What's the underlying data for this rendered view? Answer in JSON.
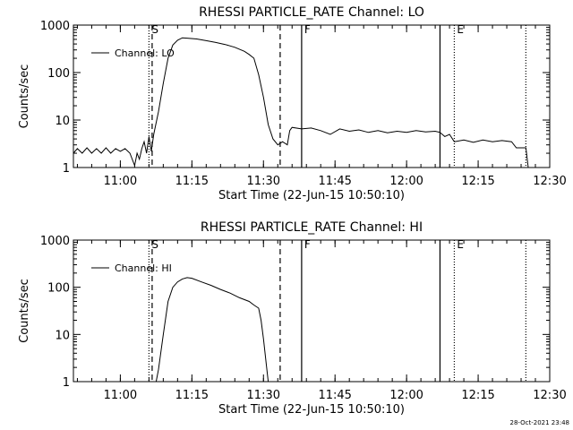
{
  "footer_timestamp": "28-Oct-2021 23:48",
  "colors": {
    "background": "#ffffff",
    "foreground": "#000000"
  },
  "chart_data": [
    {
      "type": "line",
      "title": "RHESSI PARTICLE_RATE Channel: LO",
      "xlabel": "Start Time (22-Jun-15 10:50:10)",
      "ylabel": "Counts/sec",
      "y_scale": "log",
      "ylim": [
        1,
        1000
      ],
      "xlim": [
        "10:50:10",
        "12:30:00"
      ],
      "x_ticks": [
        "11:00",
        "11:15",
        "11:30",
        "11:45",
        "12:00",
        "12:15",
        "12:30"
      ],
      "y_ticks": [
        "1",
        "10",
        "100",
        "1000"
      ],
      "legend": {
        "position": "top-left",
        "label": "Channel: LO"
      },
      "annotations": [
        {
          "label": "S",
          "time": "11:06",
          "style": "dotted"
        },
        {
          "label": "F",
          "time": "11:38",
          "style": "solid"
        },
        {
          "label": "E",
          "time": "12:10",
          "style": "dotted"
        }
      ],
      "reference_lines": [
        {
          "time": "11:06:40",
          "style": "dashed"
        },
        {
          "time": "11:33:30",
          "style": "dashed"
        },
        {
          "time": "12:07:00",
          "style": "solid"
        },
        {
          "time": "12:25:00",
          "style": "dotted"
        }
      ],
      "series": [
        {
          "label": "Channel: LO",
          "points": [
            [
              "10:50:10",
              2
            ],
            [
              "10:51:00",
              2.5
            ],
            [
              "10:52:00",
              2
            ],
            [
              "10:53:00",
              2.6
            ],
            [
              "10:54:00",
              2
            ],
            [
              "10:55:00",
              2.5
            ],
            [
              "10:56:00",
              2
            ],
            [
              "10:57:00",
              2.6
            ],
            [
              "10:58:00",
              2
            ],
            [
              "10:59:00",
              2.5
            ],
            [
              "11:00:00",
              2.2
            ],
            [
              "11:01:00",
              2.5
            ],
            [
              "11:02:00",
              2
            ],
            [
              "11:03:00",
              1.1
            ],
            [
              "11:03:30",
              2
            ],
            [
              "11:04:00",
              1.5
            ],
            [
              "11:04:30",
              2.5
            ],
            [
              "11:05:00",
              3.5
            ],
            [
              "11:05:30",
              2
            ],
            [
              "11:06:00",
              4.5
            ],
            [
              "11:06:30",
              2.2
            ],
            [
              "11:07:00",
              5
            ],
            [
              "11:08:00",
              15
            ],
            [
              "11:09:00",
              60
            ],
            [
              "11:10:00",
              200
            ],
            [
              "11:11:00",
              380
            ],
            [
              "11:12:00",
              480
            ],
            [
              "11:13:00",
              540
            ],
            [
              "11:14:00",
              530
            ],
            [
              "11:16:00",
              510
            ],
            [
              "11:18:00",
              470
            ],
            [
              "11:20:00",
              430
            ],
            [
              "11:22:00",
              390
            ],
            [
              "11:24:00",
              340
            ],
            [
              "11:26:00",
              280
            ],
            [
              "11:27:00",
              240
            ],
            [
              "11:28:00",
              200
            ],
            [
              "11:29:00",
              90
            ],
            [
              "11:30:00",
              30
            ],
            [
              "11:31:00",
              8
            ],
            [
              "11:32:00",
              4
            ],
            [
              "11:33:00",
              3
            ],
            [
              "11:34:00",
              3.5
            ],
            [
              "11:35:00",
              3
            ],
            [
              "11:35:30",
              6
            ],
            [
              "11:36:00",
              7
            ],
            [
              "11:38:00",
              6.5
            ],
            [
              "11:40:00",
              6.8
            ],
            [
              "11:42:00",
              6
            ],
            [
              "11:44:00",
              5
            ],
            [
              "11:46:00",
              6.5
            ],
            [
              "11:48:00",
              5.8
            ],
            [
              "11:50:00",
              6.2
            ],
            [
              "11:52:00",
              5.5
            ],
            [
              "11:54:00",
              6
            ],
            [
              "11:56:00",
              5.4
            ],
            [
              "11:58:00",
              5.8
            ],
            [
              "12:00:00",
              5.5
            ],
            [
              "12:02:00",
              6
            ],
            [
              "12:04:00",
              5.6
            ],
            [
              "12:06:00",
              5.8
            ],
            [
              "12:07:00",
              5.5
            ],
            [
              "12:08:00",
              4.5
            ],
            [
              "12:09:00",
              5
            ],
            [
              "12:10:00",
              3.5
            ],
            [
              "12:12:00",
              3.8
            ],
            [
              "12:14:00",
              3.4
            ],
            [
              "12:16:00",
              3.8
            ],
            [
              "12:18:00",
              3.5
            ],
            [
              "12:20:00",
              3.7
            ],
            [
              "12:22:00",
              3.5
            ],
            [
              "12:23:00",
              2.6
            ],
            [
              "12:25:00",
              2.6
            ],
            [
              "12:25:30",
              1
            ]
          ]
        }
      ]
    },
    {
      "type": "line",
      "title": "RHESSI PARTICLE_RATE Channel: HI",
      "xlabel": "Start Time (22-Jun-15 10:50:10)",
      "ylabel": "Counts/sec",
      "y_scale": "log",
      "ylim": [
        1,
        1000
      ],
      "xlim": [
        "10:50:10",
        "12:30:00"
      ],
      "x_ticks": [
        "11:00",
        "11:15",
        "11:30",
        "11:45",
        "12:00",
        "12:15",
        "12:30"
      ],
      "y_ticks": [
        "1",
        "10",
        "100",
        "1000"
      ],
      "legend": {
        "position": "top-left",
        "label": "Channel: HI"
      },
      "annotations": [
        {
          "label": "S",
          "time": "11:06",
          "style": "dotted"
        },
        {
          "label": "F",
          "time": "11:38",
          "style": "solid"
        },
        {
          "label": "E",
          "time": "12:10",
          "style": "dotted"
        }
      ],
      "reference_lines": [
        {
          "time": "11:06:40",
          "style": "dashed"
        },
        {
          "time": "11:33:30",
          "style": "dashed"
        },
        {
          "time": "12:07:00",
          "style": "solid"
        },
        {
          "time": "12:25:00",
          "style": "dotted"
        }
      ],
      "series": [
        {
          "label": "Channel: HI",
          "points": [
            [
              "11:07:30",
              1
            ],
            [
              "11:08:00",
              1.8
            ],
            [
              "11:09:00",
              10
            ],
            [
              "11:10:00",
              50
            ],
            [
              "11:11:00",
              100
            ],
            [
              "11:12:00",
              130
            ],
            [
              "11:13:00",
              150
            ],
            [
              "11:14:00",
              160
            ],
            [
              "11:15:00",
              155
            ],
            [
              "11:17:00",
              130
            ],
            [
              "11:19:00",
              110
            ],
            [
              "11:21:00",
              90
            ],
            [
              "11:23:00",
              75
            ],
            [
              "11:25:00",
              60
            ],
            [
              "11:27:00",
              50
            ],
            [
              "11:28:00",
              42
            ],
            [
              "11:29:00",
              36
            ],
            [
              "11:29:30",
              20
            ],
            [
              "11:30:00",
              8
            ],
            [
              "11:30:40",
              2
            ],
            [
              "11:31:00",
              1
            ]
          ]
        }
      ]
    }
  ]
}
